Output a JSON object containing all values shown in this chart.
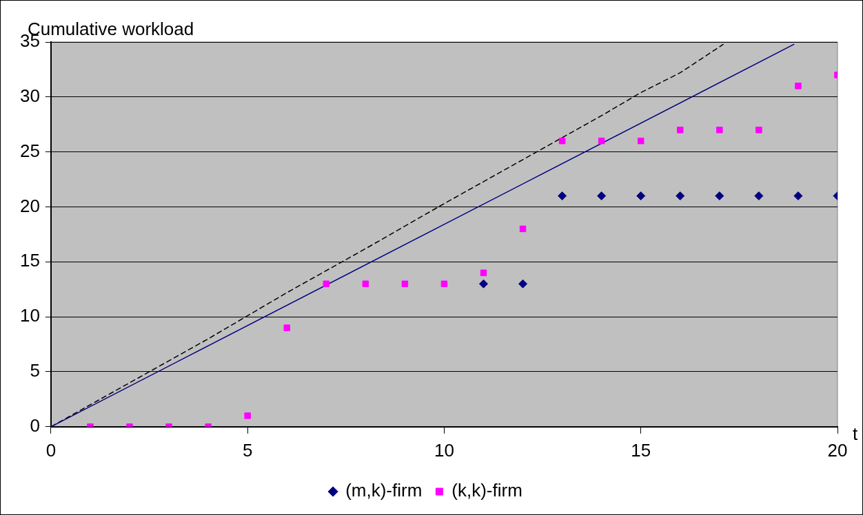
{
  "chart_data": {
    "type": "scatter",
    "ylabel": "Cumulative workload",
    "xlabel": "t",
    "x": [
      1,
      2,
      3,
      4,
      5,
      6,
      7,
      8,
      9,
      10,
      11,
      12,
      13,
      14,
      15,
      16,
      17,
      18,
      19,
      20
    ],
    "xlim": [
      0,
      20
    ],
    "xticks": [
      0,
      5,
      10,
      15,
      20
    ],
    "ylim": [
      0,
      35
    ],
    "yticks": [
      0,
      5,
      10,
      15,
      20,
      25,
      30,
      35
    ],
    "grid": "y",
    "legend": "bottom",
    "series": [
      {
        "name": "(m,k)-firm",
        "color": "#000080",
        "marker": "diamond",
        "values": [
          null,
          null,
          null,
          null,
          null,
          null,
          null,
          null,
          null,
          null,
          13,
          13,
          21,
          21,
          21,
          21,
          21,
          21,
          21,
          21
        ]
      },
      {
        "name": "(k,k)-firm",
        "color": "#ff00ff",
        "marker": "square",
        "values": [
          0,
          0,
          0,
          0,
          1,
          9,
          13,
          13,
          13,
          13,
          14,
          18,
          26,
          26,
          26,
          27,
          27,
          27,
          31,
          32
        ]
      },
      {
        "type": "line",
        "color": "#000080",
        "marker": "none",
        "line_style": "solid",
        "x": [
          0,
          18.9
        ],
        "values": [
          0,
          34.8
        ]
      },
      {
        "type": "line",
        "color": "#000000",
        "marker": "none",
        "line_style": "dashed",
        "x": [
          0,
          2,
          4,
          6,
          8,
          10,
          12,
          13,
          14,
          15,
          16,
          17.1
        ],
        "values": [
          0,
          4,
          8,
          12.2,
          16.2,
          20.3,
          24.3,
          26.3,
          28.3,
          30.4,
          32.2,
          34.8
        ]
      }
    ]
  }
}
